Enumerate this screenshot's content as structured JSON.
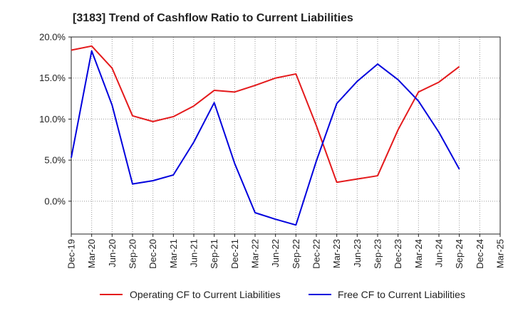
{
  "chart_data": {
    "type": "line",
    "title": "[3183]  Trend of Cashflow Ratio to Current Liabilities",
    "xlabel": "",
    "ylabel": "",
    "categories": [
      "Dec-19",
      "Mar-20",
      "Jun-20",
      "Sep-20",
      "Dec-20",
      "Mar-21",
      "Jun-21",
      "Sep-21",
      "Dec-21",
      "Mar-22",
      "Jun-22",
      "Sep-22",
      "Dec-22",
      "Mar-23",
      "Jun-23",
      "Sep-23",
      "Dec-23",
      "Mar-24",
      "Jun-24",
      "Sep-24",
      "Dec-24",
      "Mar-25"
    ],
    "y_ticks": [
      "20.0%",
      "15.0%",
      "10.0%",
      "5.0%",
      "0.0%"
    ],
    "y_tick_values": [
      20,
      15,
      10,
      5,
      0
    ],
    "ylim": [
      -4,
      20
    ],
    "grid": true,
    "legend_position": "bottom",
    "series": [
      {
        "name": "Operating CF to Current Liabilities",
        "color": "#e41a1c",
        "values": [
          18.4,
          18.9,
          16.2,
          10.4,
          9.7,
          10.3,
          11.6,
          13.5,
          13.3,
          14.1,
          15.0,
          15.5,
          9.2,
          2.3,
          2.7,
          3.1,
          8.7,
          13.3,
          14.5,
          16.4,
          null,
          null
        ]
      },
      {
        "name": "Free CF to Current Liabilities",
        "color": "#0000dd",
        "values": [
          5.3,
          18.3,
          11.7,
          2.1,
          2.5,
          3.2,
          7.2,
          12.0,
          4.6,
          -1.4,
          -2.2,
          -2.9,
          4.9,
          11.9,
          14.6,
          16.7,
          14.8,
          12.2,
          8.4,
          3.9,
          null,
          null
        ]
      }
    ]
  }
}
